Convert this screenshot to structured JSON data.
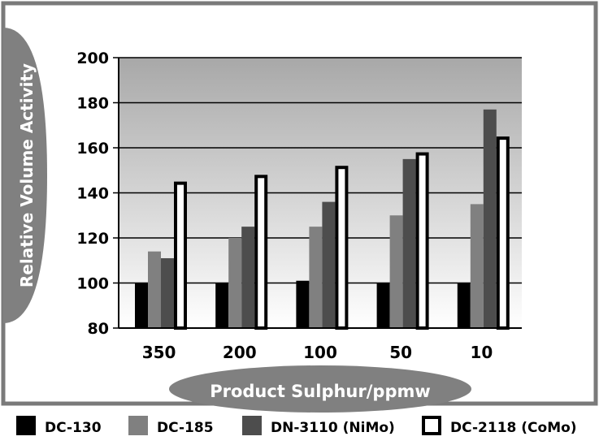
{
  "chart_data": {
    "type": "bar",
    "xlabel": "Product Sulphur/ppmw",
    "ylabel": "Relative Volume Activity",
    "ylim": [
      80,
      200
    ],
    "yticks": [
      80,
      100,
      120,
      140,
      160,
      180,
      200
    ],
    "grid": true,
    "legend": "bottom",
    "categories": [
      "350",
      "200",
      "100",
      "50",
      "10"
    ],
    "series": [
      {
        "name": "DC-130",
        "values": [
          100,
          100,
          101,
          100,
          100
        ],
        "color": "#000000"
      },
      {
        "name": "DC-185",
        "values": [
          114,
          120,
          125,
          130,
          135
        ],
        "color": "#808080"
      },
      {
        "name": "DN-3110 (NiMo)",
        "values": [
          111,
          125,
          136,
          155,
          177
        ],
        "color": "#4d4d4d"
      },
      {
        "name": "DC-2118 (CoMo)",
        "values": [
          145,
          148,
          152,
          158,
          165
        ],
        "color": "#ffffff"
      }
    ]
  }
}
